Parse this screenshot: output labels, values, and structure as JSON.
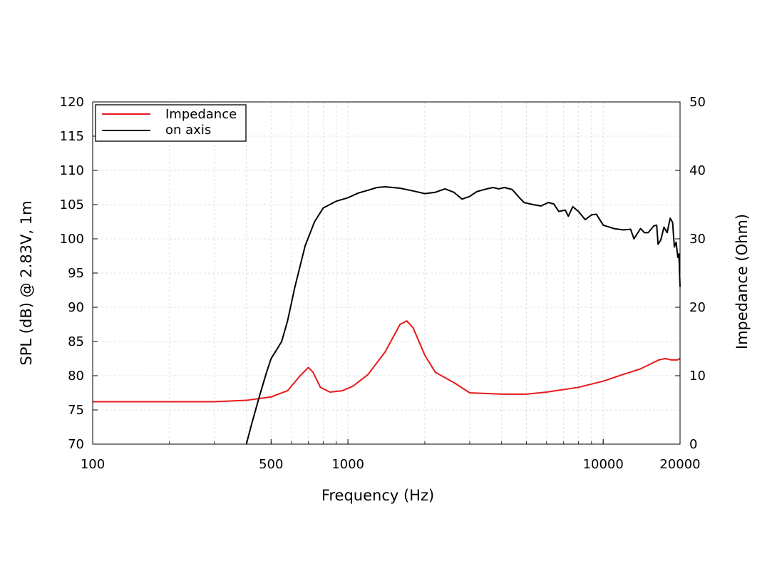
{
  "chart_data": {
    "type": "line",
    "title": "",
    "xlabel": "Frequency (Hz)",
    "ylabel": "SPL (dB) @ 2.83V, 1m",
    "y2label": "Impedance (Ohm)",
    "xscale": "log",
    "xlim": [
      100,
      20000
    ],
    "ylim": [
      70,
      120
    ],
    "y2lim": [
      0,
      50
    ],
    "x_ticks": [
      100,
      500,
      1000,
      10000,
      20000
    ],
    "x_tick_labels": [
      "100",
      "500",
      "1000",
      "10000",
      "20000"
    ],
    "y_ticks": [
      70,
      75,
      80,
      85,
      90,
      95,
      100,
      105,
      110,
      115,
      120
    ],
    "y_tick_labels": [
      "70",
      "75",
      "80",
      "85",
      "90",
      "95",
      "100",
      "105",
      "110",
      "115",
      "120"
    ],
    "y2_ticks": [
      0,
      10,
      20,
      30,
      40,
      50
    ],
    "y2_tick_labels": [
      "0",
      "10",
      "20",
      "30",
      "40",
      "50"
    ],
    "grid": true,
    "legend_position": "top-left",
    "series": [
      {
        "name": "Impedance",
        "axis": "right",
        "color": "#e8191b",
        "points": [
          [
            100,
            6.2
          ],
          [
            200,
            6.2
          ],
          [
            300,
            6.2
          ],
          [
            400,
            6.4
          ],
          [
            500,
            6.9
          ],
          [
            580,
            7.8
          ],
          [
            650,
            10.0
          ],
          [
            700,
            11.2
          ],
          [
            730,
            10.5
          ],
          [
            780,
            8.3
          ],
          [
            850,
            7.6
          ],
          [
            950,
            7.8
          ],
          [
            1050,
            8.5
          ],
          [
            1200,
            10.2
          ],
          [
            1400,
            13.5
          ],
          [
            1600,
            17.5
          ],
          [
            1700,
            18.0
          ],
          [
            1800,
            17.0
          ],
          [
            2000,
            13.0
          ],
          [
            2200,
            10.5
          ],
          [
            2600,
            9.0
          ],
          [
            3000,
            7.5
          ],
          [
            3500,
            7.4
          ],
          [
            4000,
            7.3
          ],
          [
            5000,
            7.3
          ],
          [
            6000,
            7.6
          ],
          [
            8000,
            8.3
          ],
          [
            10000,
            9.2
          ],
          [
            12000,
            10.2
          ],
          [
            14000,
            11.0
          ],
          [
            15500,
            11.8
          ],
          [
            16500,
            12.3
          ],
          [
            17500,
            12.5
          ],
          [
            18500,
            12.3
          ],
          [
            19500,
            12.3
          ],
          [
            20000,
            12.5
          ]
        ]
      },
      {
        "name": "on axis",
        "axis": "left",
        "color": "#000000",
        "points": [
          [
            400,
            70
          ],
          [
            420,
            73
          ],
          [
            450,
            77
          ],
          [
            480,
            80.5
          ],
          [
            500,
            82.5
          ],
          [
            530,
            84
          ],
          [
            550,
            85
          ],
          [
            580,
            88
          ],
          [
            620,
            93
          ],
          [
            680,
            99
          ],
          [
            740,
            102.5
          ],
          [
            800,
            104.5
          ],
          [
            900,
            105.5
          ],
          [
            1000,
            106
          ],
          [
            1100,
            106.7
          ],
          [
            1200,
            107.1
          ],
          [
            1300,
            107.5
          ],
          [
            1400,
            107.6
          ],
          [
            1600,
            107.4
          ],
          [
            1800,
            107.0
          ],
          [
            2000,
            106.6
          ],
          [
            2200,
            106.8
          ],
          [
            2400,
            107.3
          ],
          [
            2600,
            106.8
          ],
          [
            2800,
            105.8
          ],
          [
            3000,
            106.2
          ],
          [
            3200,
            106.9
          ],
          [
            3500,
            107.3
          ],
          [
            3700,
            107.5
          ],
          [
            3900,
            107.3
          ],
          [
            4100,
            107.5
          ],
          [
            4400,
            107.2
          ],
          [
            4700,
            106.0
          ],
          [
            4900,
            105.3
          ],
          [
            5300,
            105.0
          ],
          [
            5700,
            104.8
          ],
          [
            6100,
            105.3
          ],
          [
            6400,
            105.1
          ],
          [
            6700,
            104.0
          ],
          [
            7100,
            104.2
          ],
          [
            7300,
            103.3
          ],
          [
            7600,
            104.7
          ],
          [
            8000,
            104.0
          ],
          [
            8500,
            102.8
          ],
          [
            9000,
            103.5
          ],
          [
            9400,
            103.6
          ],
          [
            10000,
            102.0
          ],
          [
            11000,
            101.5
          ],
          [
            12000,
            101.3
          ],
          [
            12800,
            101.4
          ],
          [
            13200,
            100.0
          ],
          [
            14000,
            101.5
          ],
          [
            14500,
            100.9
          ],
          [
            15000,
            100.9
          ],
          [
            15800,
            101.9
          ],
          [
            16200,
            102.0
          ],
          [
            16400,
            99.2
          ],
          [
            16800,
            99.8
          ],
          [
            17300,
            101.7
          ],
          [
            17800,
            100.9
          ],
          [
            18300,
            103.0
          ],
          [
            18700,
            102.4
          ],
          [
            19000,
            98.8
          ],
          [
            19300,
            99.5
          ],
          [
            19600,
            97.3
          ],
          [
            19800,
            97.8
          ],
          [
            20000,
            93.0
          ]
        ]
      }
    ]
  }
}
